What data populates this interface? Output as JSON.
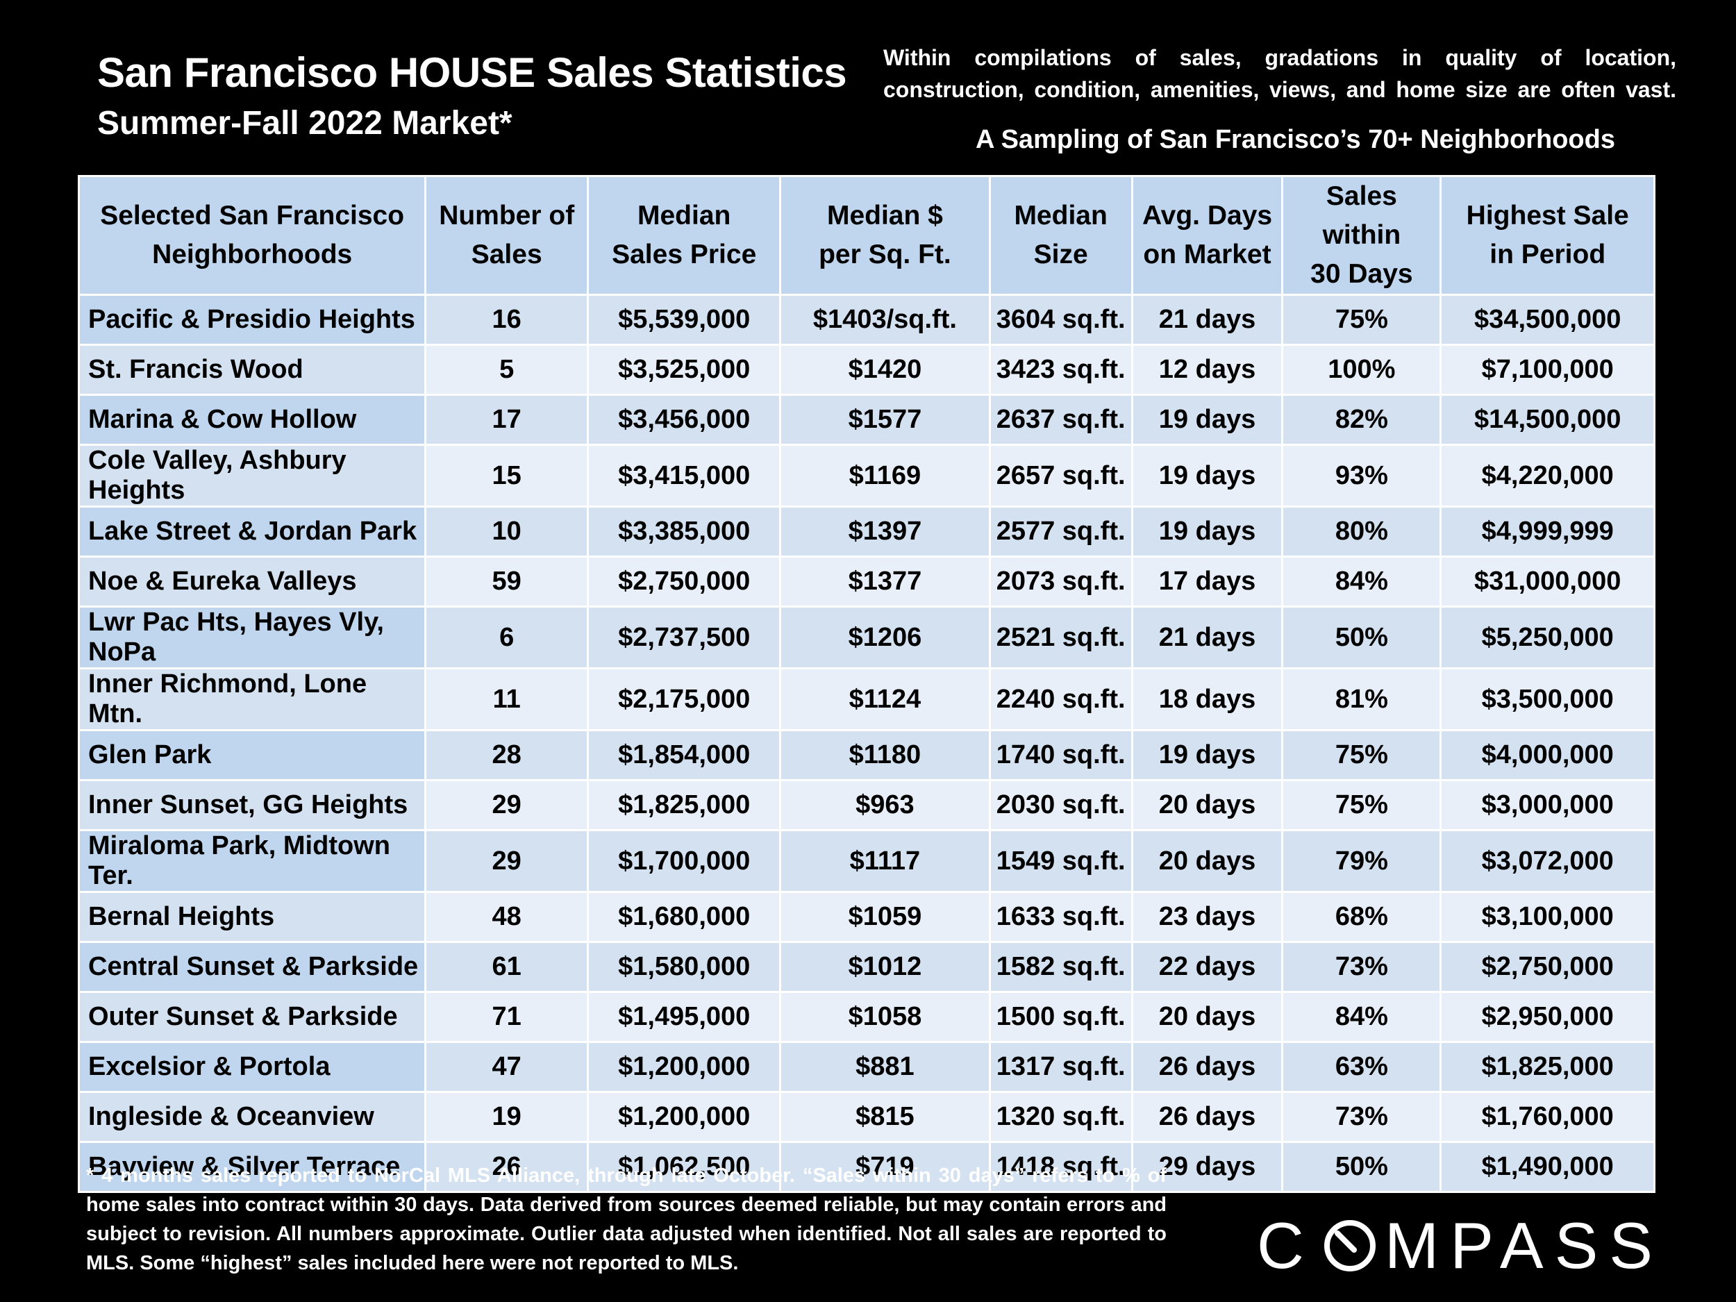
{
  "header": {
    "title": "San Francisco HOUSE Sales Statistics",
    "subtitle": "Summer-Fall 2022 Market*",
    "note_line1": "Within compilations of sales, gradations in quality of location,",
    "note_line2": "construction, condition, amenities, views, and home size are often vast.",
    "sampling": "A Sampling of San Francisco’s 70+ Neighborhoods"
  },
  "chart_data": {
    "type": "table",
    "columns": [
      [
        "Selected San Francisco",
        "Neighborhoods"
      ],
      [
        "Number of",
        "Sales"
      ],
      [
        "Median",
        "Sales Price"
      ],
      [
        "Median $",
        "per Sq. Ft."
      ],
      [
        "Median",
        "Size"
      ],
      [
        "Avg. Days",
        "on Market"
      ],
      [
        "Sales within",
        "30 Days"
      ],
      [
        "Highest Sale",
        "in Period"
      ]
    ],
    "rows": [
      [
        "Pacific & Presidio Heights",
        "16",
        "$5,539,000",
        "$1403/sq.ft.",
        "3604 sq.ft.",
        "21 days",
        "75%",
        "$34,500,000"
      ],
      [
        "St. Francis Wood",
        "5",
        "$3,525,000",
        "$1420",
        "3423 sq.ft.",
        "12 days",
        "100%",
        "$7,100,000"
      ],
      [
        "Marina & Cow Hollow",
        "17",
        "$3,456,000",
        "$1577",
        "2637 sq.ft.",
        "19 days",
        "82%",
        "$14,500,000"
      ],
      [
        "Cole Valley, Ashbury Heights",
        "15",
        "$3,415,000",
        "$1169",
        "2657 sq.ft.",
        "19 days",
        "93%",
        "$4,220,000"
      ],
      [
        "Lake Street & Jordan Park",
        "10",
        "$3,385,000",
        "$1397",
        "2577 sq.ft.",
        "19 days",
        "80%",
        "$4,999,999"
      ],
      [
        "Noe & Eureka Valleys",
        "59",
        "$2,750,000",
        "$1377",
        "2073 sq.ft.",
        "17 days",
        "84%",
        "$31,000,000"
      ],
      [
        "Lwr Pac Hts, Hayes Vly, NoPa",
        "6",
        "$2,737,500",
        "$1206",
        "2521 sq.ft.",
        "21 days",
        "50%",
        "$5,250,000"
      ],
      [
        "Inner Richmond, Lone Mtn.",
        "11",
        "$2,175,000",
        "$1124",
        "2240 sq.ft.",
        "18 days",
        "81%",
        "$3,500,000"
      ],
      [
        "Glen Park",
        "28",
        "$1,854,000",
        "$1180",
        "1740 sq.ft.",
        "19 days",
        "75%",
        "$4,000,000"
      ],
      [
        "Inner Sunset, GG Heights",
        "29",
        "$1,825,000",
        "$963",
        "2030 sq.ft.",
        "20 days",
        "75%",
        "$3,000,000"
      ],
      [
        "Miraloma Park, Midtown Ter.",
        "29",
        "$1,700,000",
        "$1117",
        "1549 sq.ft.",
        "20 days",
        "79%",
        "$3,072,000"
      ],
      [
        "Bernal Heights",
        "48",
        "$1,680,000",
        "$1059",
        "1633 sq.ft.",
        "23 days",
        "68%",
        "$3,100,000"
      ],
      [
        "Central Sunset & Parkside",
        "61",
        "$1,580,000",
        "$1012",
        "1582 sq.ft.",
        "22 days",
        "73%",
        "$2,750,000"
      ],
      [
        "Outer Sunset & Parkside",
        "71",
        "$1,495,000",
        "$1058",
        "1500 sq.ft.",
        "20 days",
        "84%",
        "$2,950,000"
      ],
      [
        "Excelsior & Portola",
        "47",
        "$1,200,000",
        "$881",
        "1317 sq.ft.",
        "26 days",
        "63%",
        "$1,825,000"
      ],
      [
        "Ingleside & Oceanview",
        "19",
        "$1,200,000",
        "$815",
        "1320 sq.ft.",
        "26 days",
        "73%",
        "$1,760,000"
      ],
      [
        "Bayview & Silver Terrace",
        "26",
        "$1,062,500",
        "$719",
        "1418 sq.ft.",
        "29 days",
        "50%",
        "$1,490,000"
      ]
    ]
  },
  "footnote": "* 4 months sales reported to NorCal MLS Alliance, through late October. “Sales within 30 days” refers to % of home sales into contract within 30 days. Data derived from sources deemed reliable, but may contain errors and subject to revision. All numbers approximate. Outlier data adjusted when identified. Not all sales are reported to MLS. Some “highest” sales included here were not reported to MLS.",
  "logo": {
    "text_before": "C",
    "text_after": "MPASS",
    "mark_icon": "compass-o-icon"
  },
  "colors": {
    "header_bg": "#bfd6ee",
    "row_light": "#e9eff8",
    "row_mid": "#d3e1f1",
    "background": "#000000"
  }
}
